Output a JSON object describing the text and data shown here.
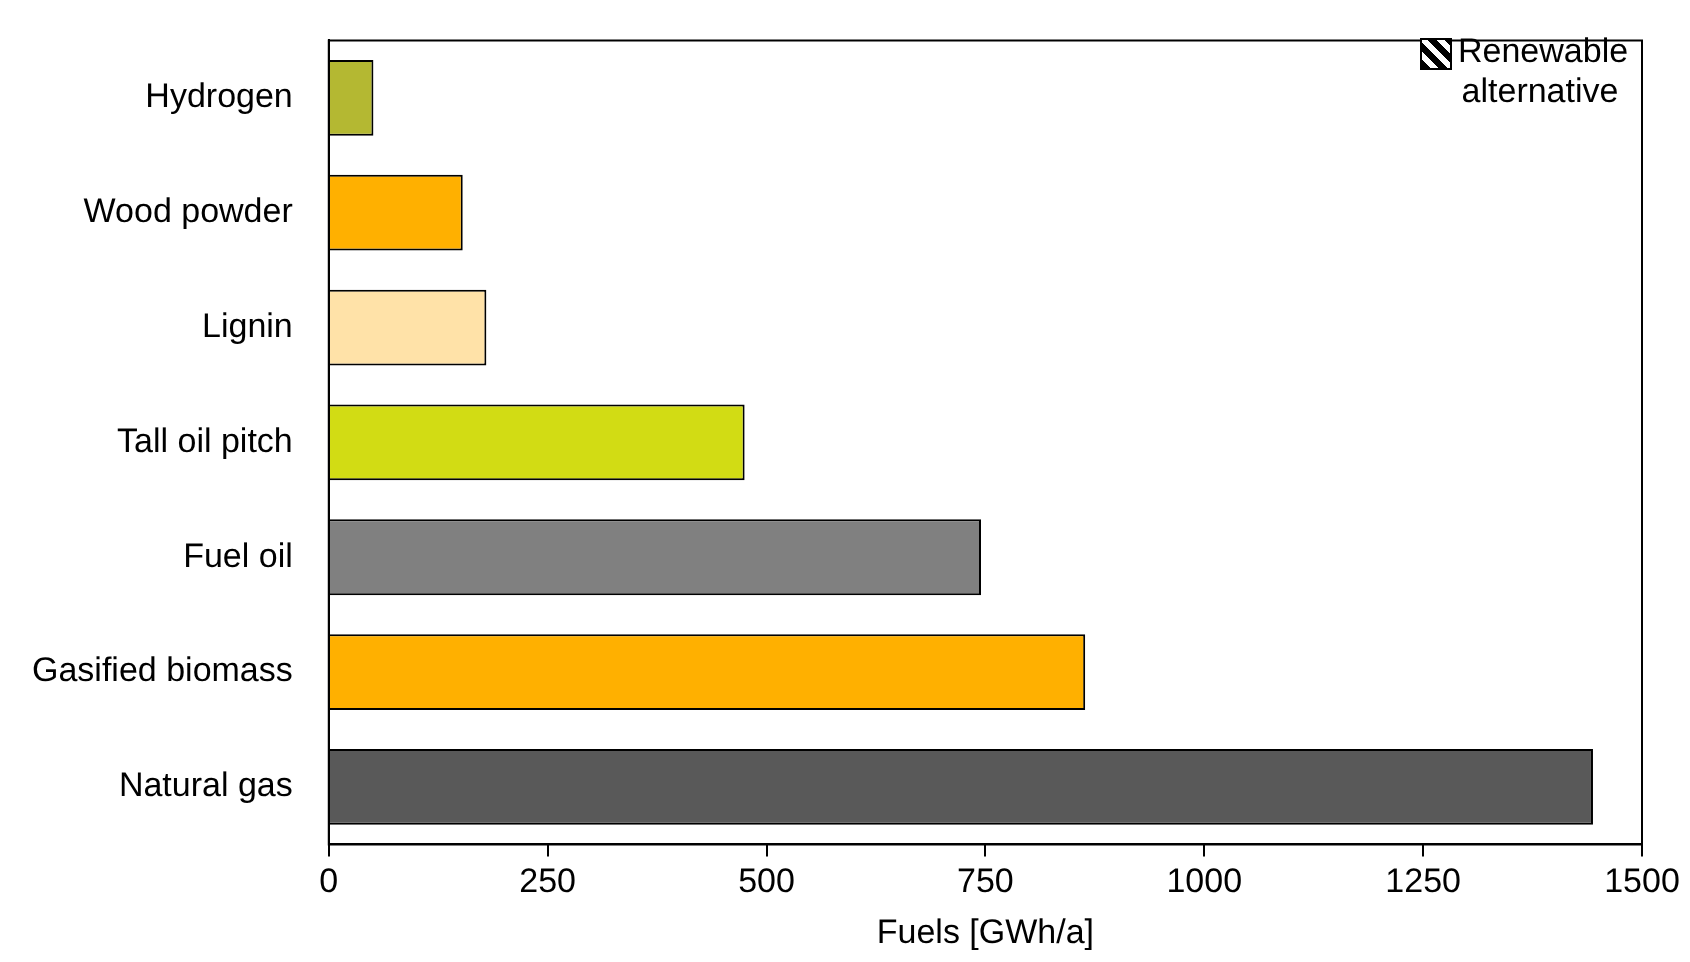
{
  "chart_data": {
    "type": "bar",
    "orientation": "horizontal",
    "stacked": true,
    "xlabel": "Fuels [GWh/a]",
    "categories": [
      "Hydrogen",
      "Wood powder",
      "Lignin",
      "Tall oil pitch",
      "Fuel oil",
      "Gasified biomass",
      "Natural gas"
    ],
    "series": [
      {
        "name": "Renewable alternative",
        "colors": [
          "#b4b832",
          "#ffb000",
          "#ffe2a8",
          "#d2dc14",
          "#ffffff",
          "#ffb000",
          "#ffffff"
        ],
        "values": [
          51,
          153,
          180,
          475,
          null,
          864,
          null
        ]
      },
      {
        "colors": [
          "#ffffff",
          "#ffffff",
          "#ffffff",
          "#ffffff",
          "#808080",
          "#ffffff",
          "#595959"
        ],
        "values": [
          null,
          null,
          null,
          null,
          745,
          null,
          1444
        ]
      }
    ],
    "xlim": [
      0,
      1500
    ],
    "xticks": [
      0,
      250,
      500,
      750,
      1000,
      1250,
      1500
    ],
    "grid": false,
    "legend": "top right"
  }
}
